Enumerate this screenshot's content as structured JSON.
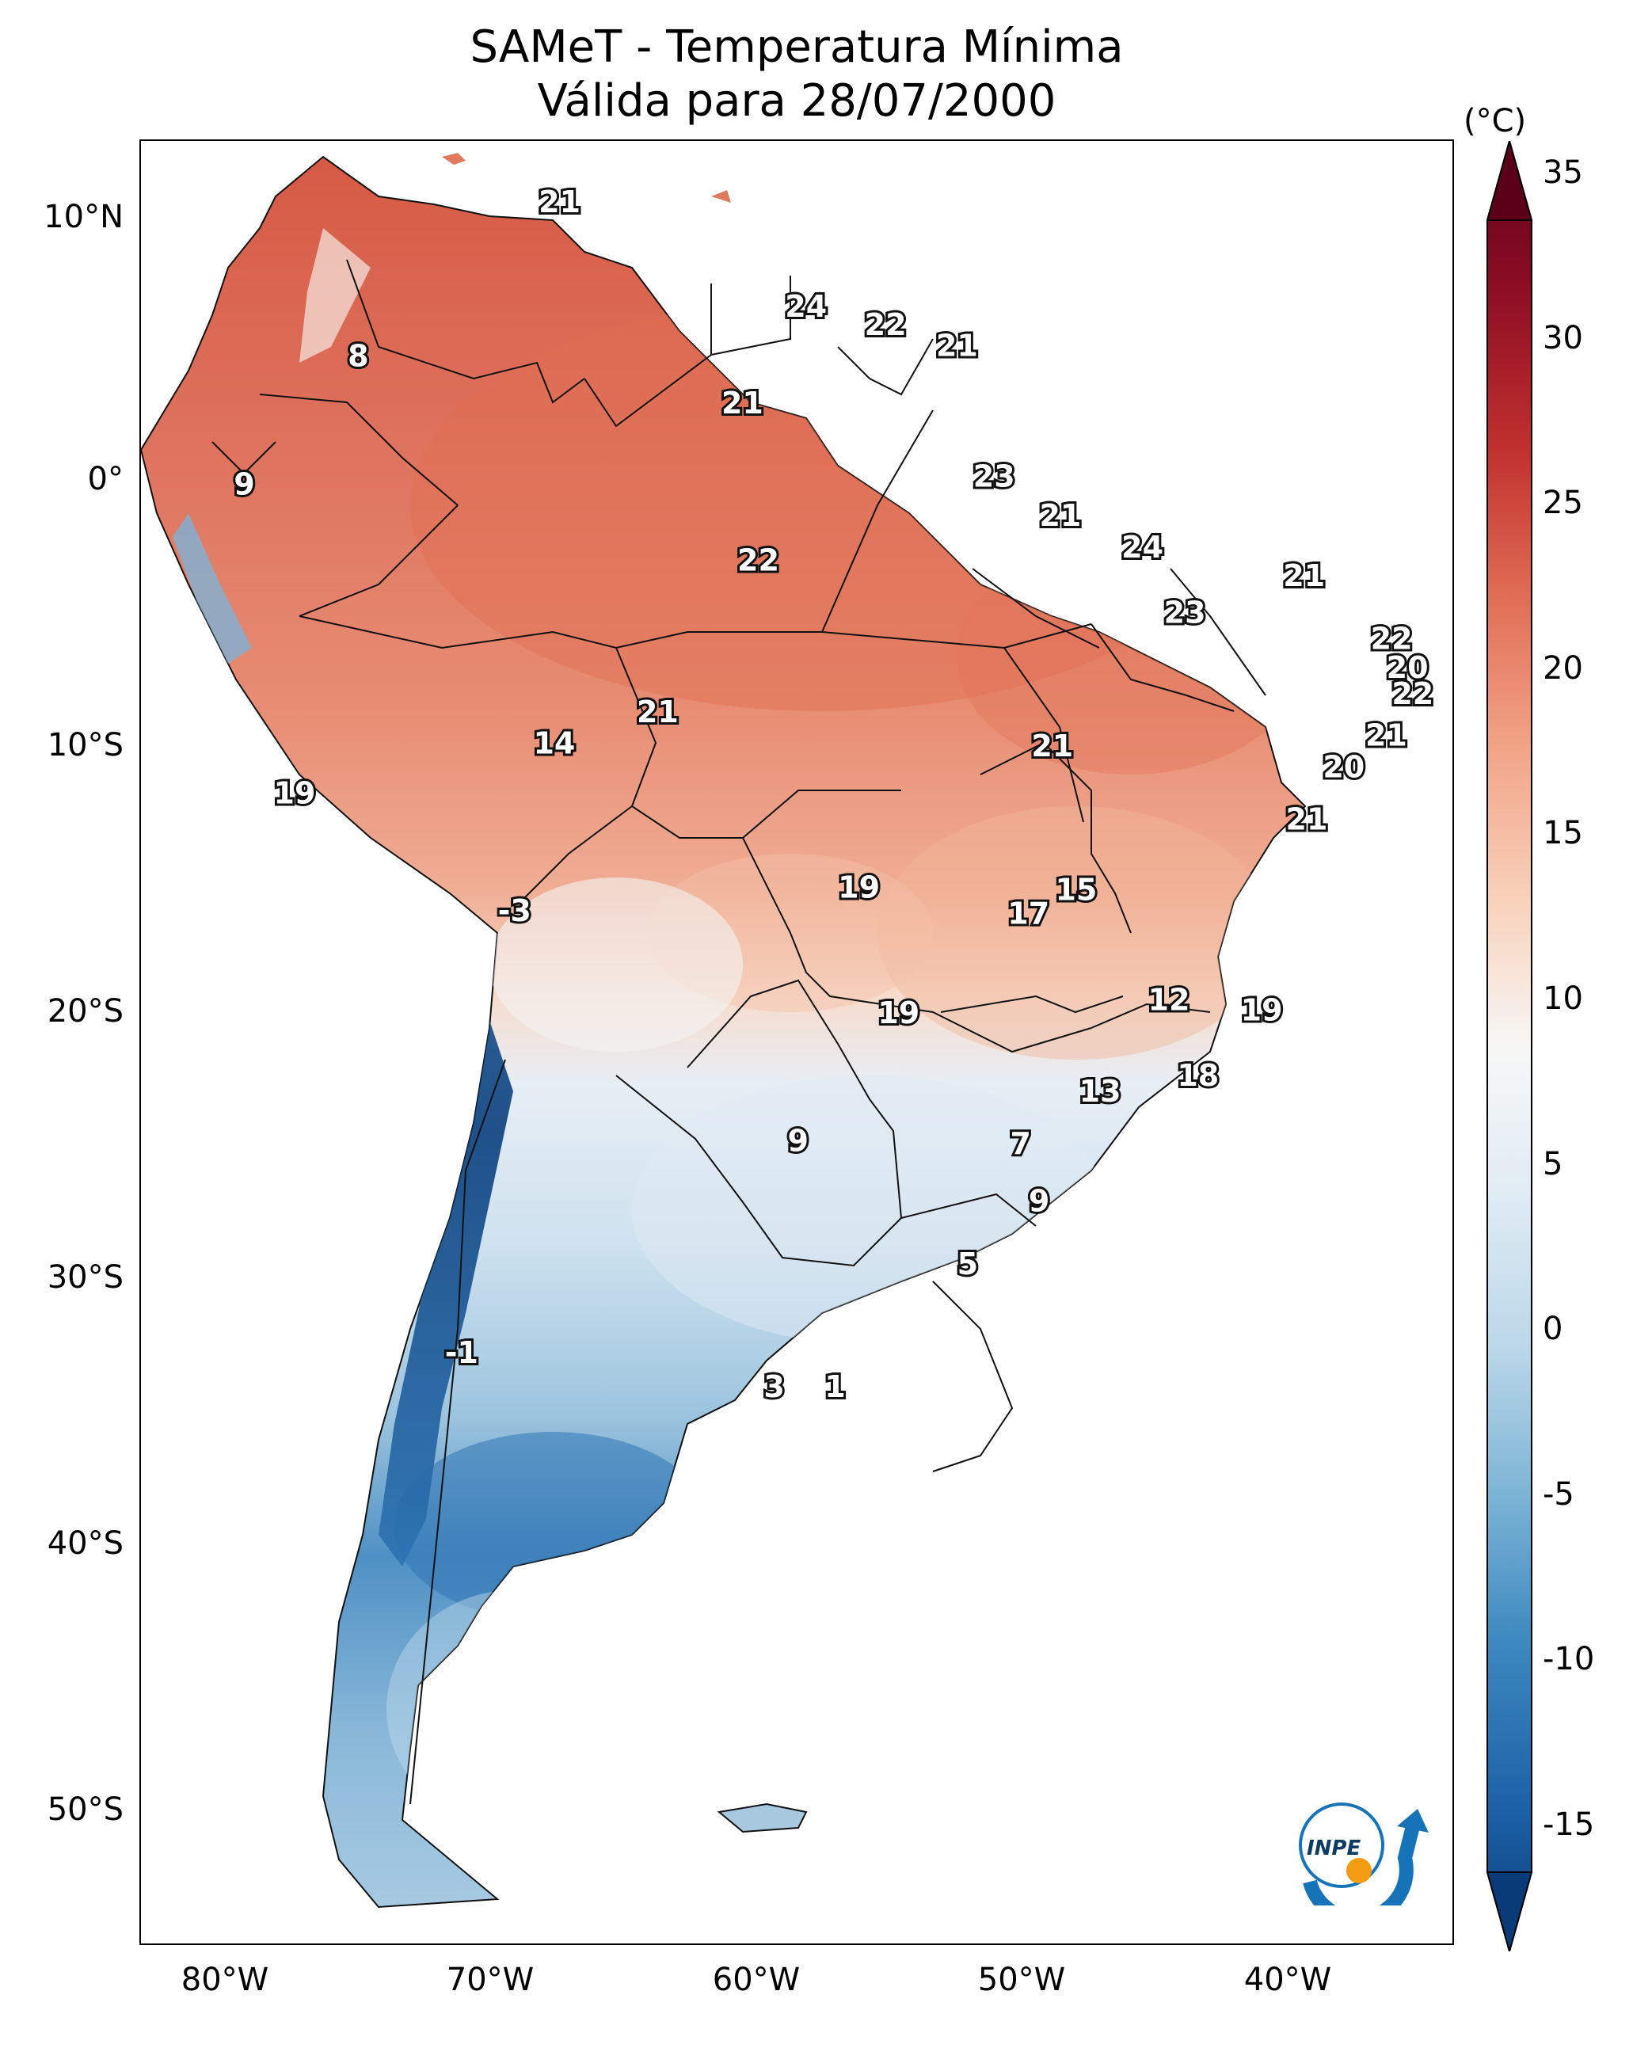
{
  "title": {
    "line1": "SAMeT - Temperatura Mínima",
    "line2": "Válida para 28/07/2000"
  },
  "axes": {
    "lat_ticks": [
      "10°N",
      "0°",
      "10°S",
      "20°S",
      "30°S",
      "40°S",
      "50°S"
    ],
    "lon_ticks": [
      "80°W",
      "70°W",
      "60°W",
      "50°W",
      "40°W"
    ]
  },
  "colorbar": {
    "unit": "(°C)",
    "labels": [
      "35",
      "30",
      "25",
      "20",
      "15",
      "10",
      "5",
      "0",
      "-5",
      "-10",
      "-15"
    ],
    "min": -15,
    "max": 35,
    "colors": [
      "#083b77",
      "#1d62a8",
      "#3c88bf",
      "#7ab3d5",
      "#b9d6e8",
      "#e1ecf4",
      "#f7f7f6",
      "#f8d2bb",
      "#f1a184",
      "#e06c55",
      "#c0312e",
      "#8c0d24",
      "#5a0019"
    ]
  },
  "contour_labels": [
    {
      "text": "21",
      "lon": -67.2,
      "lat": 10.6
    },
    {
      "text": "24",
      "lon": -57.9,
      "lat": 6.6
    },
    {
      "text": "22",
      "lon": -54.9,
      "lat": 5.9
    },
    {
      "text": "21",
      "lon": -52.2,
      "lat": 5.1
    },
    {
      "text": "8",
      "lon": -74.8,
      "lat": 4.7
    },
    {
      "text": "21",
      "lon": -60.3,
      "lat": 2.9
    },
    {
      "text": "9",
      "lon": -79.1,
      "lat": -0.2
    },
    {
      "text": "23",
      "lon": -50.8,
      "lat": 0.1
    },
    {
      "text": "21",
      "lon": -48.3,
      "lat": -1.4
    },
    {
      "text": "22",
      "lon": -59.7,
      "lat": -3.1
    },
    {
      "text": "24",
      "lon": -45.2,
      "lat": -2.6
    },
    {
      "text": "21",
      "lon": -39.1,
      "lat": -3.7
    },
    {
      "text": "23",
      "lon": -43.6,
      "lat": -5.1
    },
    {
      "text": "22",
      "lon": -35.8,
      "lat": -6.1
    },
    {
      "text": "20",
      "lon": -35.2,
      "lat": -7.2
    },
    {
      "text": "22",
      "lon": -35.0,
      "lat": -8.2
    },
    {
      "text": "21",
      "lon": -63.5,
      "lat": -8.9
    },
    {
      "text": "14",
      "lon": -67.4,
      "lat": -10.1
    },
    {
      "text": "21",
      "lon": -48.6,
      "lat": -10.2
    },
    {
      "text": "21",
      "lon": -36.0,
      "lat": -9.8
    },
    {
      "text": "20",
      "lon": -37.6,
      "lat": -11.0
    },
    {
      "text": "19",
      "lon": -77.2,
      "lat": -12.0
    },
    {
      "text": "21",
      "lon": -39.0,
      "lat": -13.0
    },
    {
      "text": "19",
      "lon": -55.9,
      "lat": -15.6
    },
    {
      "text": "15",
      "lon": -47.7,
      "lat": -15.7
    },
    {
      "text": "17",
      "lon": -49.5,
      "lat": -16.6
    },
    {
      "text": "-3",
      "lon": -68.9,
      "lat": -16.5
    },
    {
      "text": "12",
      "lon": -44.2,
      "lat": -19.9
    },
    {
      "text": "19",
      "lon": -54.4,
      "lat": -20.4
    },
    {
      "text": "19",
      "lon": -40.7,
      "lat": -20.3
    },
    {
      "text": "18",
      "lon": -43.1,
      "lat": -22.8
    },
    {
      "text": "13",
      "lon": -46.8,
      "lat": -23.4
    },
    {
      "text": "9",
      "lon": -58.2,
      "lat": -25.3
    },
    {
      "text": "7",
      "lon": -49.8,
      "lat": -25.4
    },
    {
      "text": "9",
      "lon": -49.1,
      "lat": -27.6
    },
    {
      "text": "5",
      "lon": -51.8,
      "lat": -30.0
    },
    {
      "text": "-1",
      "lon": -70.9,
      "lat": -33.4
    },
    {
      "text": "3",
      "lon": -59.1,
      "lat": -34.7
    },
    {
      "text": "1",
      "lon": -56.8,
      "lat": -34.7
    }
  ],
  "logo": {
    "text": "INPE"
  }
}
